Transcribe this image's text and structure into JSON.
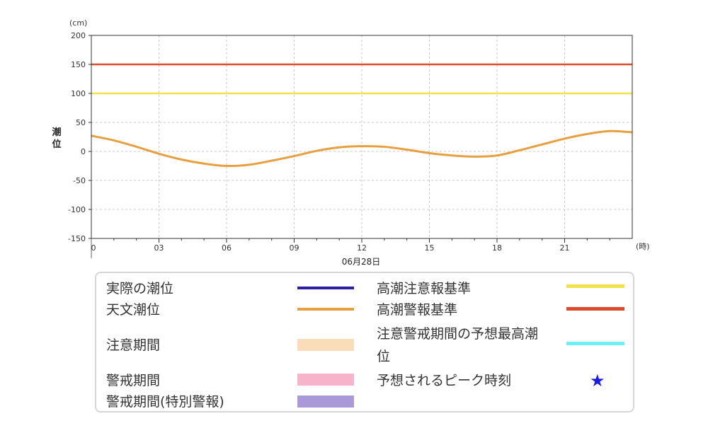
{
  "chart_data": {
    "type": "line",
    "ylabel_unit": "(cm)",
    "ylabel": "潮位",
    "xlabel_unit": "(時)",
    "date_label": "06月28日",
    "ylim": [
      -150,
      200
    ],
    "y_ticks": [
      "200",
      "150",
      "100",
      "50",
      "0",
      "-50",
      "-100",
      "-150"
    ],
    "y_tick_values": [
      200,
      150,
      100,
      50,
      0,
      -50,
      -100,
      -150
    ],
    "xlim": [
      0,
      24
    ],
    "x_ticks": [
      "0",
      "03",
      "06",
      "09",
      "12",
      "15",
      "18",
      "21"
    ],
    "x_tick_values": [
      0,
      3,
      6,
      9,
      12,
      15,
      18,
      21
    ],
    "grid": true,
    "thresholds": [
      {
        "name": "高潮警報基準",
        "value": 150,
        "color": "#dd4b2a"
      },
      {
        "name": "高潮注意報基準",
        "value": 100,
        "color": "#f2e24a"
      }
    ],
    "series": [
      {
        "name": "天文潮位",
        "color": "#e8a03e",
        "x": [
          0,
          1,
          2,
          3,
          4,
          5,
          6,
          7,
          8,
          9,
          10,
          11,
          12,
          13,
          14,
          15,
          16,
          17,
          18,
          19,
          20,
          21,
          22,
          23,
          24
        ],
        "y": [
          27,
          19,
          8,
          -4,
          -14,
          -21,
          -25,
          -23,
          -16,
          -8,
          1,
          7,
          9,
          8,
          3,
          -3,
          -7,
          -9,
          -7,
          2,
          12,
          22,
          30,
          35,
          33
        ]
      }
    ]
  },
  "legend": {
    "items": [
      {
        "label": "実際の潮位",
        "color": "#2b1fa3",
        "kind": "line"
      },
      {
        "label": "天文潮位",
        "color": "#e8a03e",
        "kind": "line"
      },
      {
        "label": "注意期間",
        "color": "#f9dcb8",
        "kind": "band"
      },
      {
        "label": "警戒期間",
        "color": "#f6b3c9",
        "kind": "band"
      },
      {
        "label": "警戒期間(特別警報)",
        "color": "#aa99d9",
        "kind": "band"
      },
      {
        "label": "高潮注意報基準",
        "color": "#f2e24a",
        "kind": "line"
      },
      {
        "label": "高潮警報基準",
        "color": "#dd4b2a",
        "kind": "line"
      },
      {
        "label_line1": "注意警戒期間の予想最高潮",
        "label_line2": "位",
        "color": "#6ef0f5",
        "kind": "line"
      },
      {
        "label": "予想されるピーク時刻",
        "color": "#1a1ae6",
        "kind": "star"
      }
    ]
  }
}
